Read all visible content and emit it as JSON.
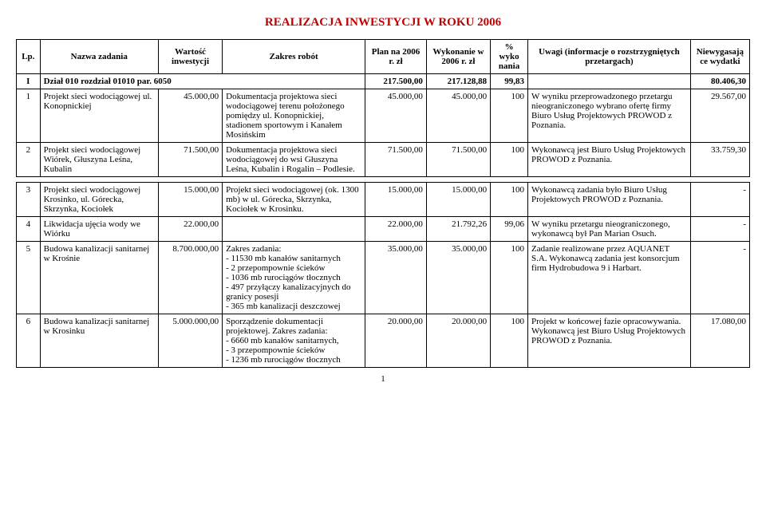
{
  "title": "REALIZACJA INWESTYCJI W ROKU 2006",
  "headers": {
    "lp": "Lp.",
    "name": "Nazwa zadania",
    "wart": "Wartość inwestycji",
    "zakres": "Zakres robót",
    "plan": "Plan na 2006 r. zł",
    "wyk": "Wykonanie w 2006 r. zł",
    "pct": "% wyko nania",
    "uwagi": "Uwagi (informacje o rozstrzygniętych przetargach)",
    "niew": "Niewygasają ce wydatki"
  },
  "section": {
    "lp": "I",
    "name": "Dział 010 rozdział 01010 par. 6050",
    "plan": "217.500,00",
    "wyk": "217.128,88",
    "pct": "99,83",
    "niew": "80.406,30"
  },
  "rows": [
    {
      "lp": "1",
      "name": "Projekt sieci wodociągowej ul. Konopnickiej",
      "wart": "45.000,00",
      "zakres": "Dokumentacja projektowa sieci wodociągowej terenu położonego pomiędzy ul. Konopnickiej, stadionem sportowym i Kanałem Mosińskim",
      "plan": "45.000,00",
      "wyk": "45.000,00",
      "pct": "100",
      "uwagi": "W wyniku przeprowadzonego przetargu nieograniczonego wybrano ofertę firmy Biuro Usług Projektowych PROWOD z Poznania.",
      "niew": "29.567,00"
    },
    {
      "lp": "2",
      "name": "Projekt sieci wodociągowej Wiórek, Głuszyna Leśna, Kubalin",
      "wart": "71.500,00",
      "zakres": "Dokumentacja projektowa sieci wodociągowej do wsi Głuszyna Leśna, Kubalin i Rogalin – Podlesie.",
      "plan": "71.500,00",
      "wyk": "71.500,00",
      "pct": "100",
      "uwagi": "Wykonawcą jest Biuro Usług Projektowych PROWOD z Poznania.",
      "niew": "33.759,30"
    },
    {
      "lp": "3",
      "name": "Projekt sieci wodociągowej Krosinko, ul. Górecka, Skrzynka, Kociołek",
      "wart": "15.000,00",
      "zakres": "Projekt sieci wodociągowej (ok. 1300 mb) w ul. Górecka, Skrzynka, Kociołek w Krosinku.",
      "plan": "15.000,00",
      "wyk": "15.000,00",
      "pct": "100",
      "uwagi": "Wykonawcą zadania było Biuro Usług Projektowych PROWOD z Poznania.",
      "niew": "-"
    },
    {
      "lp": "4",
      "name": "Likwidacja ujęcia wody we Wiórku",
      "wart": "22.000,00",
      "zakres": "",
      "plan": "22.000,00",
      "wyk": "21.792,26",
      "pct": "99,06",
      "uwagi": "W wyniku przetargu nieograniczonego, wykonawcą był Pan Marian Osuch.",
      "niew": "-"
    },
    {
      "lp": "5",
      "name": "Budowa kanalizacji sanitarnej w Krośnie",
      "wart": "8.700.000,00",
      "zakres": "Zakres zadania:\n- 11530 mb kanałów sanitarnych\n- 2 przepompownie ścieków\n- 1036 mb rurociągów tłocznych\n- 497 przyłączy kanalizacyjnych do granicy posesji\n- 365 mb kanalizacji deszczowej",
      "plan": "35.000,00",
      "wyk": "35.000,00",
      "pct": "100",
      "uwagi": "Zadanie realizowane przez AQUANET S.A. Wykonawcą zadania jest konsorcjum firm Hydrobudowa 9 i Harbart.",
      "niew": "-"
    },
    {
      "lp": "6",
      "name": "Budowa kanalizacji sanitarnej w Krosinku",
      "wart": "5.000.000,00",
      "zakres": "Sporządzenie dokumentacji projektowej. Zakres zadania:\n- 6660 mb kanałów sanitarnych,\n- 3 przepompownie ścieków\n- 1236 mb rurociągów tłocznych",
      "plan": "20.000,00",
      "wyk": "20.000,00",
      "pct": "100",
      "uwagi": "Projekt w końcowej fazie opracowywania. Wykonawcą jest Biuro Usług Projektowych PROWOD z Poznania.",
      "niew": "17.080,00"
    }
  ],
  "page": "1"
}
